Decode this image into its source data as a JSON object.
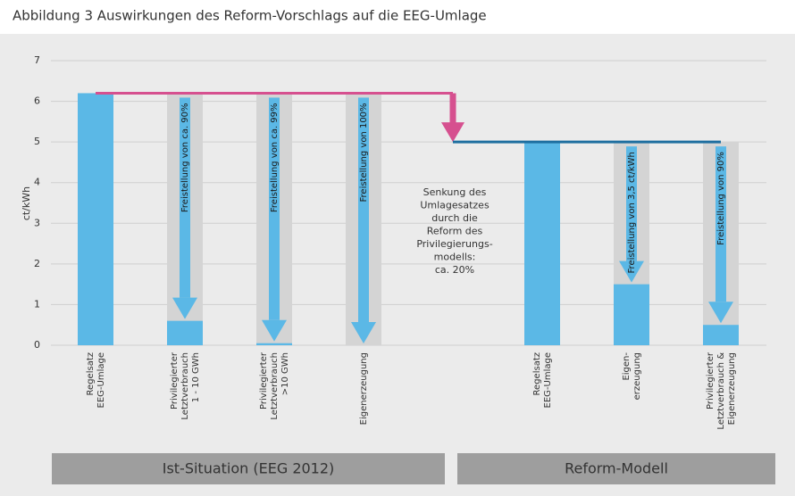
{
  "chart_data": {
    "type": "bar",
    "title": "Abbildung 3 Auswirkungen des Reform-Vorschlags auf die EEG-Umlage",
    "y_label": "ct/kWh",
    "categories": [
      [
        "Regelsatz",
        "EEG-Umlage"
      ],
      [
        "Privilegierter",
        "Letztverbrauch",
        "1 - 10 GWh"
      ],
      [
        "Privilegierter",
        "Letztverbrauch",
        ">10 GWh"
      ],
      [
        "Eigenerzeugung"
      ],
      null,
      [
        "Regelsatz",
        "EEG-Umlage"
      ],
      [
        "Eigen-",
        "erzeugung"
      ],
      [
        "Privilegierter",
        "Letztverbrauch &",
        "Eigenerzeugung"
      ]
    ],
    "values": [
      6.2,
      0.6,
      0.05,
      0,
      null,
      5.0,
      1.5,
      0.5
    ],
    "reference_values": [
      null,
      6.2,
      6.2,
      6.2,
      null,
      null,
      5.0,
      5.0
    ],
    "arrow_labels": [
      null,
      "Freistellung von ca. 90%",
      "Freistellung von ca. 99%",
      "Freistellung von 100%",
      null,
      null,
      "Freistellung von 3,5 ct/kWh",
      "Freistellung von 90%"
    ],
    "annotation": [
      "Senkung des",
      "Umlagesatzes",
      "durch die",
      "Reform des",
      "Privilegierungs-",
      "modells:",
      "ca. 20%"
    ],
    "groups": [
      "Ist-Situation (EEG 2012)",
      "Reform-Modell"
    ],
    "color": "#5bb8e6",
    "reference_color": "#d4d4d4",
    "connector_color": "#d6508f",
    "level_color": "#1f6fa0",
    "ylim": [
      0,
      7
    ],
    "yticks": [
      0,
      1,
      2,
      3,
      4,
      5,
      6,
      7
    ],
    "grid": true
  }
}
